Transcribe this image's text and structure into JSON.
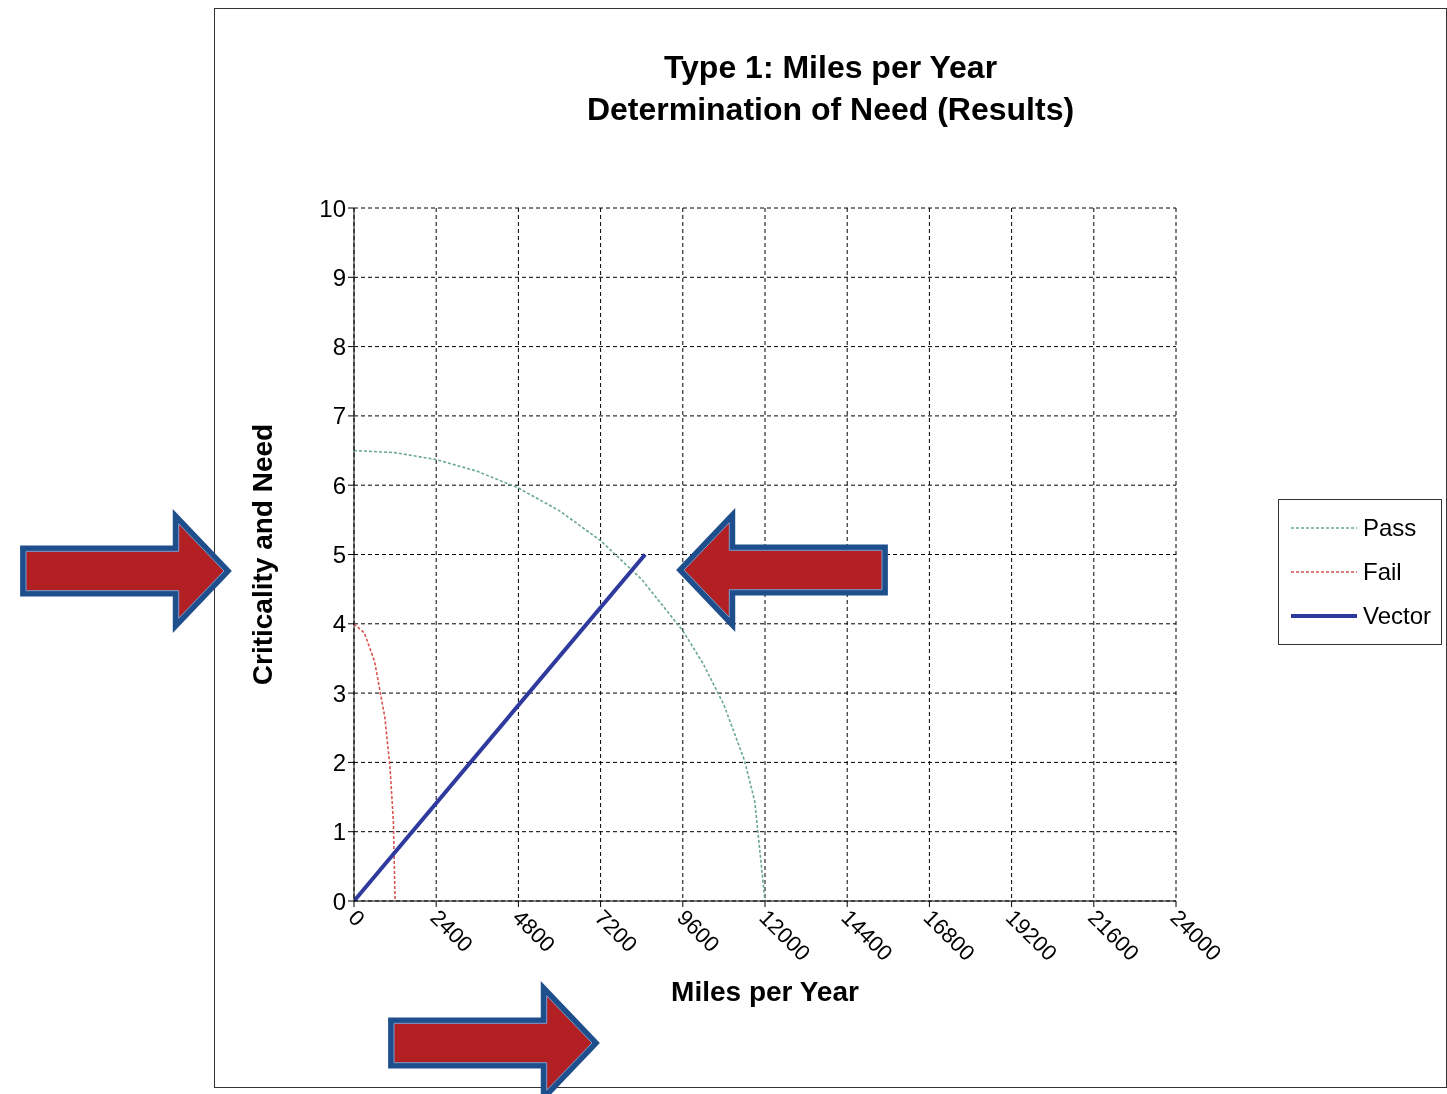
{
  "chart_data": {
    "type": "line",
    "title": "Type 1: Miles per Year",
    "subtitle": "Determination of Need (Results)",
    "xlabel": "Miles per Year",
    "ylabel": "Criticality and Need",
    "xlim": [
      0,
      24000
    ],
    "xticks": [
      0,
      2400,
      4800,
      7200,
      9600,
      12000,
      14400,
      16800,
      19200,
      21600,
      24000
    ],
    "ylim": [
      0,
      10
    ],
    "yticks": [
      0,
      1,
      2,
      3,
      4,
      5,
      6,
      7,
      8,
      9,
      10
    ],
    "grid": true,
    "legend": "right",
    "marker": "none",
    "series": [
      {
        "name": "Pass",
        "color": "#6aa88c",
        "line_style": "dotted",
        "x": [
          0,
          1200,
          2400,
          3600,
          4800,
          6000,
          7200,
          8400,
          9600,
          10200,
          10800,
          11400,
          11700,
          12000
        ],
        "values": [
          6.5,
          6.47,
          6.37,
          6.2,
          5.96,
          5.63,
          5.2,
          4.64,
          3.9,
          3.42,
          2.83,
          2.03,
          1.44,
          0
        ]
      },
      {
        "name": "Fail",
        "color": "#d9534f",
        "line_style": "dotted",
        "x": [
          0,
          300,
          600,
          900,
          1050,
          1150,
          1200
        ],
        "values": [
          4,
          3.87,
          3.46,
          2.65,
          1.94,
          1.14,
          0
        ]
      },
      {
        "name": "Vector",
        "color": "#2e3a9e",
        "line_style": "solid",
        "x": [
          0,
          8500
        ],
        "values": [
          0,
          5
        ]
      }
    ]
  }
}
